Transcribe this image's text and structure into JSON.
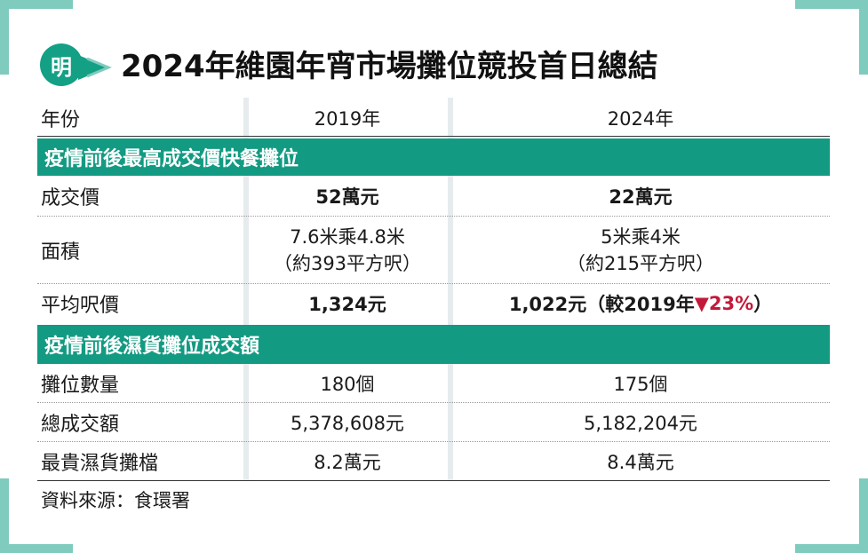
{
  "logo": {
    "text": "明",
    "color": "#13a085"
  },
  "title": "2024年維園年宵市場攤位競投首日總結",
  "colors": {
    "accent": "#139a82",
    "corner": "#7fcbbd",
    "down": "#c2193a"
  },
  "header": {
    "label": "年份",
    "col1": "2019年",
    "col2": "2024年"
  },
  "section1": {
    "title": "疫情前後最高成交價快餐攤位",
    "rows": [
      {
        "label": "成交價",
        "v2019": "52萬元",
        "v2024": "22萬元"
      },
      {
        "label": "面積",
        "v2019_line1": "7.6米乘4.8米",
        "v2019_line2": "（約393平方呎）",
        "v2024_line1": "5米乘4米",
        "v2024_line2": "（約215平方呎）"
      },
      {
        "label": "平均呎價",
        "v2019": "1,324元",
        "v2024_prefix": "1,022元（較2019年",
        "v2024_change": "▼23%",
        "v2024_suffix": "）"
      }
    ]
  },
  "section2": {
    "title": "疫情前後濕貨攤位成交額",
    "rows": [
      {
        "label": "攤位數量",
        "v2019": "180個",
        "v2024": "175個"
      },
      {
        "label": "總成交額",
        "v2019": "5,378,608元",
        "v2024": "5,182,204元"
      },
      {
        "label": "最貴濕貨攤檔",
        "v2019": "8.2萬元",
        "v2024": "8.4萬元"
      }
    ]
  },
  "source": "資料來源：食環署"
}
